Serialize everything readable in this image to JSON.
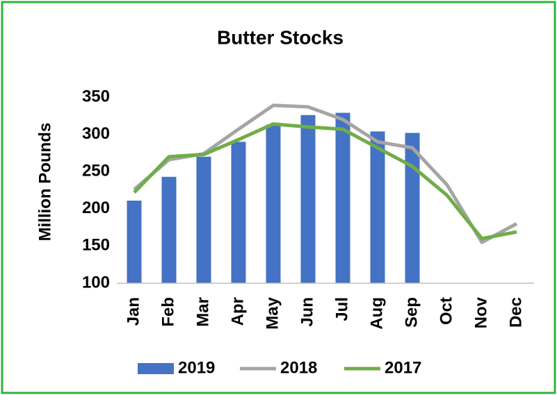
{
  "chart_data": {
    "type": "bar-line",
    "title": "Butter Stocks",
    "y_label": "Million Pounds",
    "categories": [
      "Jan",
      "Feb",
      "Mar",
      "Apr",
      "May",
      "Jun",
      "Jul",
      "Aug",
      "Sep",
      "Oct",
      "Nov",
      "Dec"
    ],
    "series": [
      {
        "name": "2019",
        "type": "bar",
        "color": "#4472c4",
        "values": [
          211,
          243,
          270,
          290,
          313,
          326,
          329,
          304,
          302,
          null,
          null,
          null
        ]
      },
      {
        "name": "2018",
        "type": "line",
        "color": "#a5a5a5",
        "values": [
          226,
          266,
          274,
          307,
          339,
          337,
          320,
          290,
          282,
          232,
          155,
          180
        ]
      },
      {
        "name": "2017",
        "type": "line",
        "color": "#70ad47",
        "values": [
          222,
          270,
          273,
          293,
          314,
          310,
          307,
          282,
          257,
          218,
          160,
          169
        ]
      }
    ],
    "ylim": [
      100,
      350
    ],
    "yticks": [
      100,
      150,
      200,
      250,
      300,
      350
    ],
    "grid": false,
    "legend": "bottom"
  }
}
